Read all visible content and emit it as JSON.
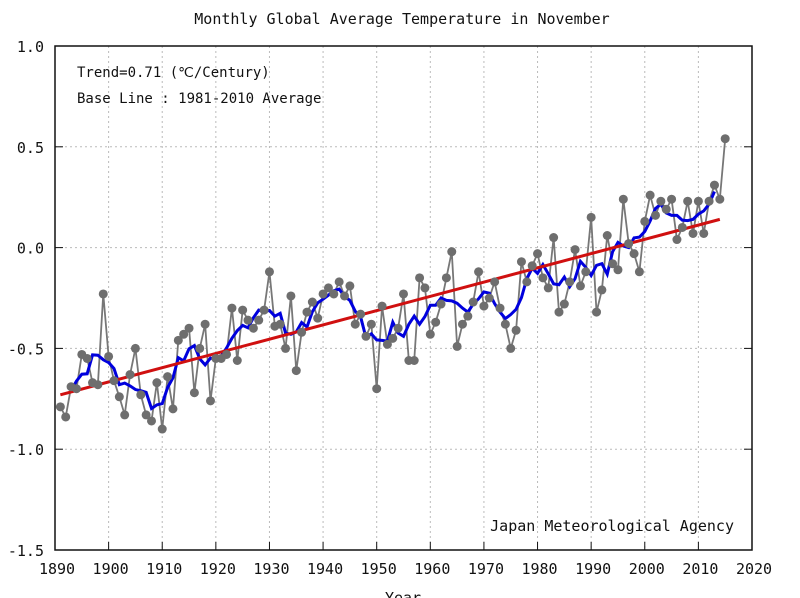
{
  "chart_data": {
    "type": "line",
    "title": "Monthly Global Average Temperature in November",
    "xlabel": "Year",
    "ylabel": "",
    "xlim": [
      1890,
      2020
    ],
    "ylim": [
      -1.5,
      1.0
    ],
    "xticks": [
      1890,
      1900,
      1910,
      1920,
      1930,
      1940,
      1950,
      1960,
      1970,
      1980,
      1990,
      2000,
      2010,
      2020
    ],
    "yticks": [
      1.0,
      0.5,
      0.0,
      -0.5,
      -1.0,
      -1.5
    ],
    "ytick_labels": [
      "1.0",
      "0.5",
      "0.0",
      "-0.5",
      "-1.0",
      "-1.5"
    ],
    "grid": true,
    "annotations": [
      "Trend=0.71 (℃/Century)",
      "Base Line : 1981-2010 Average"
    ],
    "credit": "Japan Meteorological Agency",
    "series": {
      "anomaly": {
        "color": "#6e6e6e",
        "x_start": 1891,
        "values": [
          -0.79,
          -0.84,
          -0.69,
          -0.7,
          -0.53,
          -0.55,
          -0.67,
          -0.68,
          -0.23,
          -0.54,
          -0.66,
          -0.74,
          -0.83,
          -0.63,
          -0.5,
          -0.73,
          -0.83,
          -0.86,
          -0.67,
          -0.9,
          -0.64,
          -0.8,
          -0.46,
          -0.43,
          -0.4,
          -0.72,
          -0.5,
          -0.38,
          -0.76,
          -0.55,
          -0.55,
          -0.53,
          -0.3,
          -0.56,
          -0.31,
          -0.36,
          -0.4,
          -0.36,
          -0.31,
          -0.12,
          -0.39,
          -0.38,
          -0.5,
          -0.24,
          -0.61,
          -0.42,
          -0.32,
          -0.27,
          -0.35,
          -0.23,
          -0.2,
          -0.23,
          -0.17,
          -0.24,
          -0.19,
          -0.38,
          -0.33,
          -0.44,
          -0.38,
          -0.7,
          -0.29,
          -0.48,
          -0.45,
          -0.4,
          -0.23,
          -0.56,
          -0.56,
          -0.15,
          -0.2,
          -0.43,
          -0.37,
          -0.28,
          -0.15,
          -0.02,
          -0.49,
          -0.38,
          -0.34,
          -0.27,
          -0.12,
          -0.29,
          -0.25,
          -0.17,
          -0.3,
          -0.38,
          -0.5,
          -0.41,
          -0.07,
          -0.17,
          -0.09,
          -0.03,
          -0.15,
          -0.2,
          0.05,
          -0.32,
          -0.28,
          -0.17,
          -0.01,
          -0.19,
          -0.12,
          0.15,
          -0.32,
          -0.21,
          0.06,
          -0.08,
          -0.11,
          0.24,
          0.02,
          -0.03,
          -0.12,
          0.13,
          0.26,
          0.16,
          0.23,
          0.19,
          0.24,
          0.04,
          0.1,
          0.23,
          0.07,
          0.23,
          0.07,
          0.23,
          0.31,
          0.24,
          0.54
        ]
      },
      "running_mean_5yr": {
        "color": "#0000dd"
      },
      "trend": {
        "color": "#d01010",
        "x": [
          1891,
          2014
        ],
        "y": [
          -0.73,
          0.14
        ]
      }
    }
  }
}
